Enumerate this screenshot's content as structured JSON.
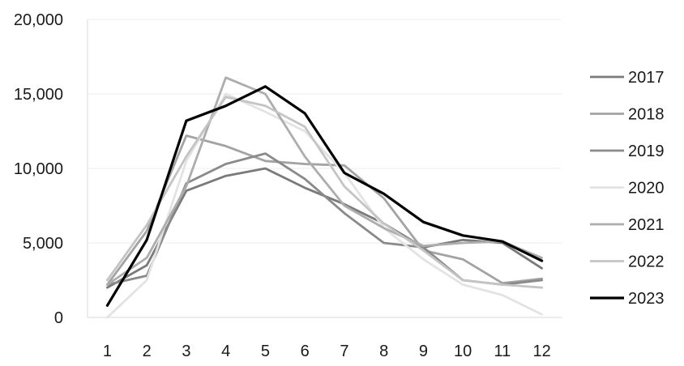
{
  "chart_data": {
    "type": "line",
    "x": [
      1,
      2,
      3,
      4,
      5,
      6,
      7,
      8,
      9,
      10,
      11,
      12
    ],
    "ylim": [
      0,
      20000
    ],
    "y_ticks": [
      0,
      5000,
      10000,
      15000,
      20000
    ],
    "y_tick_labels": [
      "0",
      "5,000",
      "10,000",
      "15,000",
      "20,000"
    ],
    "x_tick_labels": [
      "1",
      "2",
      "3",
      "4",
      "5",
      "6",
      "7",
      "8",
      "9",
      "10",
      "11",
      "12"
    ],
    "grid": "horizontal",
    "legend_position": "right",
    "series": [
      {
        "name": "2017",
        "color": "#7a7a7a",
        "values": [
          2000,
          3500,
          8500,
          9500,
          10000,
          8700,
          7600,
          6300,
          4700,
          5200,
          5000,
          3300
        ]
      },
      {
        "name": "2018",
        "color": "#a3a3a3",
        "values": [
          2200,
          5800,
          12200,
          11500,
          10500,
          10300,
          10200,
          8000,
          4500,
          3900,
          2300,
          2600
        ]
      },
      {
        "name": "2019",
        "color": "#8a8a8a",
        "values": [
          2200,
          2800,
          9000,
          10300,
          11000,
          9300,
          7000,
          5000,
          4700,
          2500,
          2200,
          2500
        ]
      },
      {
        "name": "2020",
        "color": "#e3e3e3",
        "values": [
          0,
          2500,
          10500,
          15000,
          13800,
          12500,
          9700,
          6000,
          3900,
          2200,
          1500,
          200
        ]
      },
      {
        "name": "2021",
        "color": "#adadad",
        "values": [
          2200,
          4000,
          8800,
          16100,
          15000,
          10800,
          7500,
          6000,
          4800,
          5000,
          5100,
          4000
        ]
      },
      {
        "name": "2022",
        "color": "#c4c4c4",
        "values": [
          2500,
          6200,
          10800,
          14800,
          14200,
          12800,
          8800,
          6300,
          4500,
          2500,
          2200,
          2000
        ]
      },
      {
        "name": "2023",
        "color": "#000000",
        "values": [
          800,
          5200,
          13200,
          14200,
          15500,
          13700,
          9700,
          8300,
          6400,
          5500,
          5100,
          3800
        ]
      }
    ]
  }
}
